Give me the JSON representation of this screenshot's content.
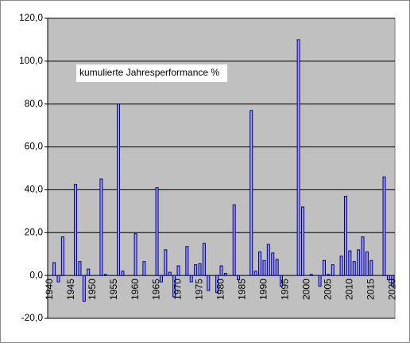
{
  "chart_data": {
    "type": "bar",
    "annotation": "kumulierte Jahresperformance %",
    "categories": [
      "1940",
      null,
      null,
      null,
      null,
      "1945",
      null,
      null,
      null,
      null,
      "1950",
      null,
      null,
      null,
      null,
      "1955",
      null,
      null,
      null,
      null,
      "1960",
      null,
      null,
      null,
      null,
      "1965",
      null,
      null,
      null,
      null,
      "1970",
      null,
      null,
      null,
      null,
      "1975",
      null,
      null,
      null,
      null,
      "1980",
      null,
      null,
      null,
      null,
      "1985",
      null,
      null,
      null,
      null,
      "1990",
      null,
      null,
      null,
      null,
      "1995",
      null,
      null,
      null,
      null,
      "2000",
      null,
      null,
      null,
      null,
      "2005",
      null,
      null,
      null,
      null,
      "2010",
      null,
      null,
      null,
      null,
      "2015",
      null,
      null,
      null,
      null,
      "2020"
    ],
    "values": [
      0,
      6,
      -3,
      18,
      0,
      0,
      42.5,
      6.5,
      -12,
      3,
      0,
      0,
      45,
      0.5,
      0,
      0,
      80,
      2,
      0,
      0,
      19.5,
      0,
      6.5,
      0,
      0,
      41,
      -3,
      12,
      1.5,
      -10,
      4.5,
      0,
      13.5,
      -3,
      5,
      5.5,
      15,
      -7,
      0,
      -8,
      4.5,
      1,
      0,
      33,
      -2,
      0,
      0,
      77,
      2,
      11,
      7,
      14.5,
      10.5,
      7.5,
      -5,
      0,
      0,
      0,
      110,
      32,
      0,
      0.5,
      0,
      -5,
      7,
      0.5,
      5,
      0,
      9,
      37,
      11.5,
      6.5,
      12,
      18,
      11,
      7,
      0,
      0,
      46,
      -2,
      -5
    ],
    "color": "#9999ff",
    "edge": "#000080",
    "background": "#c0c0c0",
    "ylim": [
      -20,
      120
    ],
    "yticks": [
      {
        "value": -20,
        "label": "-20,0"
      },
      {
        "value": 0,
        "label": "0,0"
      },
      {
        "value": 20,
        "label": "20,0"
      },
      {
        "value": 40,
        "label": "40,0"
      },
      {
        "value": 60,
        "label": "60,0"
      },
      {
        "value": 80,
        "label": "80,0"
      },
      {
        "value": 100,
        "label": "100,0"
      },
      {
        "value": 120,
        "label": "120,0"
      }
    ],
    "grid": true
  }
}
